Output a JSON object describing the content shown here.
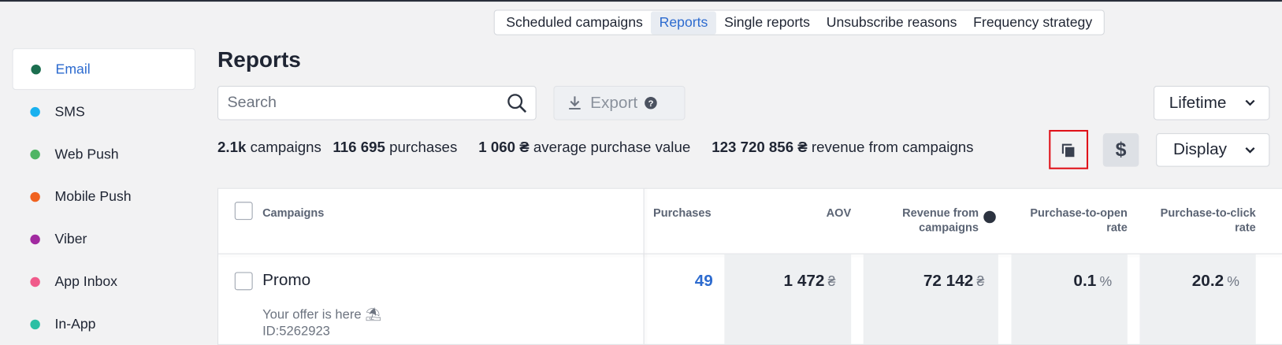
{
  "tabs": [
    "Scheduled campaigns",
    "Reports",
    "Single reports",
    "Unsubscribe reasons",
    "Frequency strategy"
  ],
  "sidebar": [
    {
      "label": "Email",
      "color": "#1b6e4f"
    },
    {
      "label": "SMS",
      "color": "#19b1ef"
    },
    {
      "label": "Web Push",
      "color": "#4fb565"
    },
    {
      "label": "Mobile Push",
      "color": "#f0621f"
    },
    {
      "label": "Viber",
      "color": "#a12aa0"
    },
    {
      "label": "App Inbox",
      "color": "#f05a8a"
    },
    {
      "label": "In-App",
      "color": "#2bbfa4"
    }
  ],
  "page_title": "Reports",
  "search_placeholder": "Search",
  "export": "Export",
  "period": "Lifetime",
  "display": "Display",
  "currency_button": "$",
  "stats": [
    {
      "value": "2.1k",
      "label": "campaigns"
    },
    {
      "value": "116 695",
      "label": "purchases"
    },
    {
      "value": "1 060 ₴",
      "label": "average purchase value"
    },
    {
      "value": "123 720 856 ₴",
      "label": "revenue from campaigns"
    }
  ],
  "table": {
    "headers": [
      "Campaigns",
      "Purchases",
      "AOV",
      "Revenue from campaigns",
      "Purchase-to-open rate",
      "Purchase-to-click rate"
    ],
    "rows": [
      {
        "name": "Promo",
        "subject": "Your offer is here ⛱",
        "id": "ID:5262923",
        "cells": [
          {
            "value": "49"
          },
          {
            "value": "1 472",
            "unit": "₴"
          },
          {
            "value": "72 142",
            "unit": "₴"
          },
          {
            "value": "0.1",
            "unit": "%"
          },
          {
            "value": "20.2",
            "unit": "%"
          }
        ]
      }
    ]
  }
}
